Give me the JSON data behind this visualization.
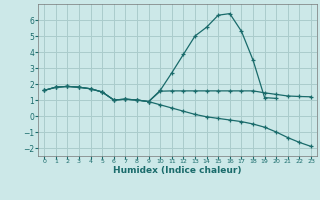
{
  "title": "",
  "xlabel": "Humidex (Indice chaleur)",
  "ylabel": "",
  "bg_color": "#cce8e8",
  "grid_color": "#aacccc",
  "line_color": "#1a6b6b",
  "xlim": [
    -0.5,
    23.5
  ],
  "ylim": [
    -2.5,
    7.0
  ],
  "yticks": [
    -2,
    -1,
    0,
    1,
    2,
    3,
    4,
    5,
    6
  ],
  "xticks": [
    0,
    1,
    2,
    3,
    4,
    5,
    6,
    7,
    8,
    9,
    10,
    11,
    12,
    13,
    14,
    15,
    16,
    17,
    18,
    19,
    20,
    21,
    22,
    23
  ],
  "line1_x": [
    0,
    1,
    2,
    3,
    4,
    5,
    6,
    7,
    8,
    9,
    10,
    11,
    12,
    13,
    14,
    15,
    16,
    17,
    18,
    19,
    20
  ],
  "line1_y": [
    1.6,
    1.8,
    1.85,
    1.8,
    1.7,
    1.5,
    1.0,
    1.05,
    1.0,
    0.9,
    1.6,
    2.7,
    3.85,
    5.0,
    5.55,
    6.3,
    6.4,
    5.3,
    3.5,
    1.15,
    1.1
  ],
  "line2_x": [
    0,
    1,
    2,
    3,
    4,
    5,
    6,
    7,
    8,
    9,
    10,
    11,
    12,
    13,
    14,
    15,
    16,
    17,
    18,
    19,
    20,
    21,
    22,
    23
  ],
  "line2_y": [
    1.6,
    1.8,
    1.85,
    1.8,
    1.7,
    1.5,
    1.0,
    1.05,
    1.0,
    0.9,
    1.55,
    1.57,
    1.57,
    1.57,
    1.57,
    1.57,
    1.57,
    1.57,
    1.57,
    1.45,
    1.35,
    1.25,
    1.22,
    1.2
  ],
  "line3_x": [
    0,
    1,
    2,
    3,
    4,
    5,
    6,
    7,
    8,
    9,
    10,
    11,
    12,
    13,
    14,
    15,
    16,
    17,
    18,
    19,
    20,
    21,
    22,
    23
  ],
  "line3_y": [
    1.6,
    1.8,
    1.85,
    1.8,
    1.7,
    1.5,
    1.0,
    1.05,
    1.0,
    0.9,
    0.7,
    0.5,
    0.3,
    0.1,
    -0.05,
    -0.15,
    -0.25,
    -0.35,
    -0.5,
    -0.7,
    -1.0,
    -1.35,
    -1.65,
    -1.9
  ]
}
